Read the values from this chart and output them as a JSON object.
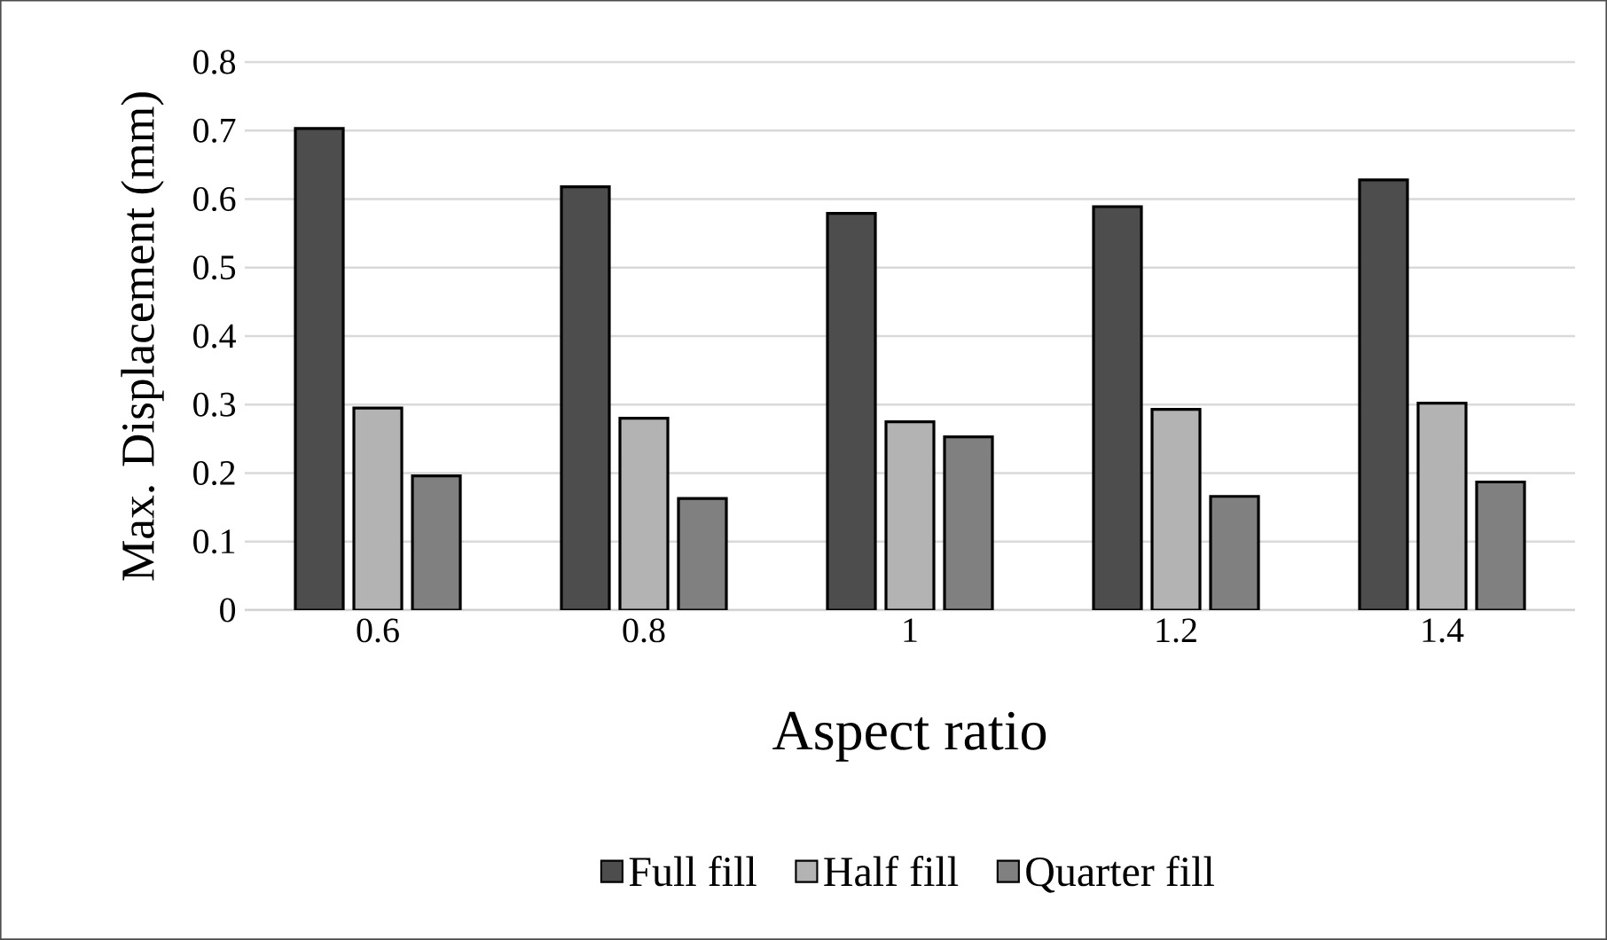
{
  "chart_data": {
    "type": "bar",
    "xlabel": "Aspect ratio",
    "ylabel": "Max. Displacement (mm)",
    "categories": [
      "0.6",
      "0.8",
      "1",
      "1.2",
      "1.4"
    ],
    "series": [
      {
        "name": "Full fill",
        "color": "#4d4d4d",
        "values": [
          0.703,
          0.618,
          0.579,
          0.589,
          0.628
        ]
      },
      {
        "name": "Half fill",
        "color": "#b3b3b3",
        "values": [
          0.295,
          0.28,
          0.275,
          0.293,
          0.302
        ]
      },
      {
        "name": "Quarter fill",
        "color": "#808080",
        "values": [
          0.196,
          0.163,
          0.253,
          0.166,
          0.187
        ]
      }
    ],
    "ylim": [
      0,
      0.8
    ],
    "yticks": [
      0,
      0.1,
      0.2,
      0.3,
      0.4,
      0.5,
      0.6,
      0.7,
      0.8
    ],
    "grid": "y",
    "legend": "bottom"
  }
}
